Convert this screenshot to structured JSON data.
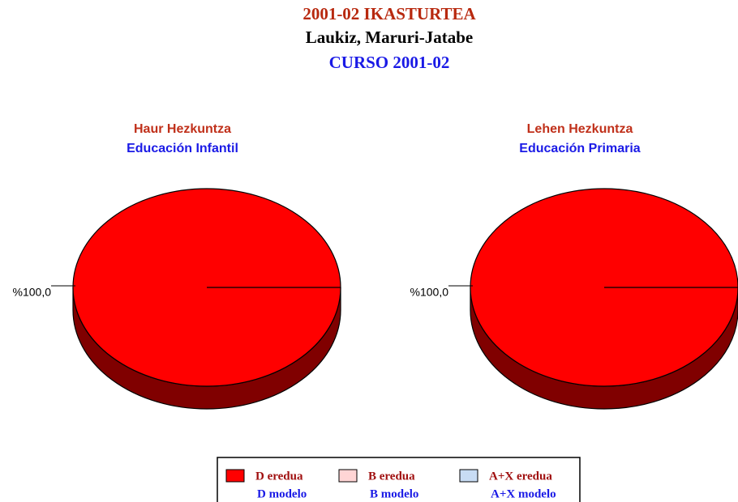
{
  "header": {
    "title_eu": "2001-02 IKASTURTEA",
    "place": "Laukiz, Maruri-Jatabe",
    "title_es": "CURSO 2001-02"
  },
  "legend": {
    "items": [
      {
        "name": "D eredua",
        "name_es": "D modelo",
        "color": "#ff0000"
      },
      {
        "name": "B eredua",
        "name_es": "B modelo",
        "color": "#ffd5d5"
      },
      {
        "name": "A+X eredua",
        "name_es": "A+X modelo",
        "color": "#c8dcf4"
      }
    ]
  },
  "chart_data": [
    {
      "type": "pie",
      "title": "Haur Hezkuntza",
      "subtitle": "Educación Infantil",
      "values": [
        100,
        0,
        0
      ],
      "value_labels": [
        "%100,0",
        null,
        null
      ]
    },
    {
      "type": "pie",
      "title": "Lehen Hezkuntza",
      "subtitle": "Educación Primaria",
      "values": [
        100,
        0,
        0
      ],
      "value_labels": [
        "%100,0",
        null,
        null
      ]
    }
  ]
}
